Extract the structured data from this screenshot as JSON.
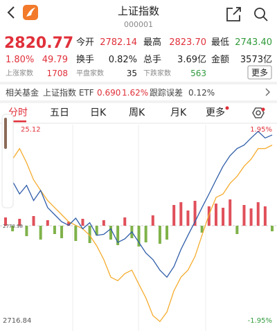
{
  "header": {
    "title": "上证指数",
    "code": "000001"
  },
  "quote": {
    "price": "2820.77",
    "change_pct": "1.80%",
    "change": "49.79"
  },
  "stats": [
    {
      "label": "今开",
      "value": "2782.14"
    },
    {
      "label": "最高",
      "value": "2823.70"
    },
    {
      "label": "最低",
      "value": "2743.40"
    },
    {
      "label": "换手",
      "value": "0.82%"
    },
    {
      "label": "总手",
      "value": "3.69亿"
    },
    {
      "label": "金额",
      "value": "3573亿"
    }
  ],
  "breadth": [
    {
      "label": "上涨家数",
      "value": "1708"
    },
    {
      "label": "平盘家数",
      "value": "35"
    },
    {
      "label": "下跌家数",
      "value": "563"
    }
  ],
  "more_button": "更多",
  "fund": {
    "label": "相关基金",
    "name": "上证指数 ETF",
    "price": "0.690",
    "change": "1.62%",
    "error_label": "跟踪误差",
    "error": "0.12%"
  },
  "tabs": [
    "分时",
    "五日",
    "日K",
    "周K",
    "月K",
    "更多"
  ],
  "chart_data": {
    "type": "line",
    "ylim": [
      -1.95,
      1.95
    ],
    "yticks": [
      {
        "value": 1.95,
        "label": "1.95%"
      },
      {
        "value": -1.95,
        "label": "-1.95%"
      }
    ],
    "price_ticks": [
      {
        "value": 1.95,
        "label": "25.12"
      },
      {
        "value": 0,
        "label": "2770.98"
      },
      {
        "value": -1.95,
        "label": "2716.84"
      }
    ],
    "series": [
      {
        "color": "#2e5ca8",
        "values": [
          0.56,
          0.88,
          0.63,
          0.8,
          0.5,
          0.7,
          0.36,
          0.22,
          0.08,
          0.01,
          0.15,
          -0.06,
          0.06,
          -0.19,
          -0.17,
          -0.06,
          -0.33,
          -0.26,
          -0.12,
          -0.33,
          -0.54,
          -0.67,
          -0.88,
          -1.02,
          -0.81,
          -0.47,
          -0.19,
          0.08,
          0.36,
          0.63,
          0.91,
          1.18,
          1.39,
          1.53,
          1.6,
          1.74,
          1.87,
          1.74,
          1.8
        ]
      },
      {
        "color": "#f5ac2e",
        "values": [
          0.36,
          1.32,
          1.53,
          1.25,
          0.91,
          0.7,
          0.5,
          0.36,
          0.22,
          0.08,
          0.01,
          -0.06,
          -0.19,
          -0.4,
          -0.67,
          -1.02,
          -1.09,
          -0.95,
          -0.88,
          -1.16,
          -1.43,
          -1.78,
          -1.9,
          -1.71,
          -1.29,
          -1.02,
          -0.88,
          -0.61,
          -0.19,
          0.22,
          0.56,
          0.63,
          0.84,
          0.98,
          1.18,
          1.32,
          1.53,
          1.53,
          1.6
        ]
      }
    ],
    "volume": {
      "ylim": [
        -40,
        40
      ],
      "up_color": "#e0505a",
      "down_color": "#7fb24a",
      "values": [
        12,
        -8,
        10,
        -15,
        14,
        -20,
        8,
        -12,
        -18,
        6,
        -22,
        10,
        -25,
        -14,
        8,
        -20,
        -28,
        12,
        -18,
        -30,
        -24,
        15,
        -26,
        -20,
        30,
        34,
        22,
        36,
        -10,
        28,
        32,
        26,
        38,
        -12,
        30,
        25,
        34,
        28,
        -8
      ]
    }
  }
}
